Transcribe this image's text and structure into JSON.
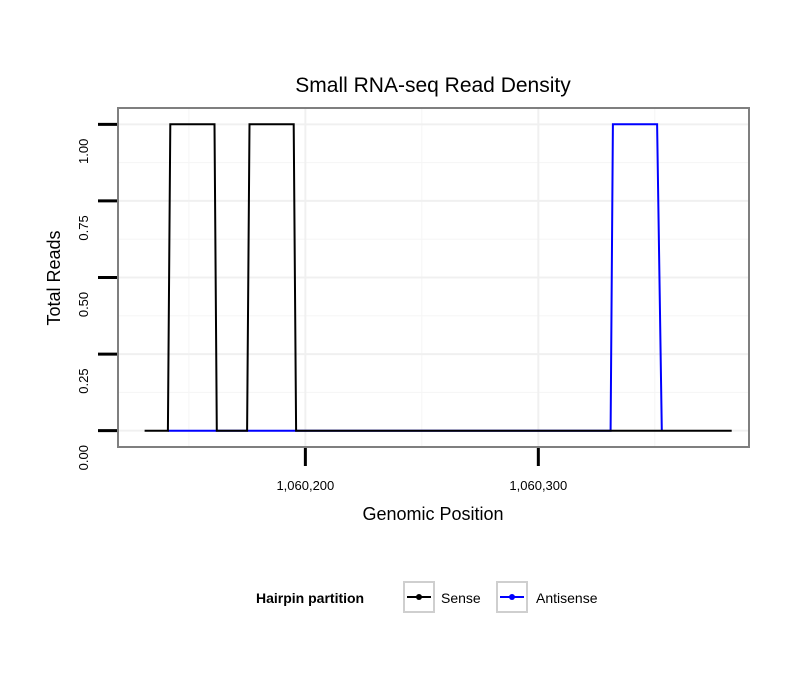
{
  "chart_data": {
    "type": "line",
    "title": "Small RNA-seq Read Density",
    "xlabel": "Genomic Position",
    "ylabel": "Total Reads",
    "xlim": [
      1060120,
      1060390
    ],
    "ylim": [
      -0.05,
      1.05
    ],
    "x_ticks": [
      1060200,
      1060300
    ],
    "x_tick_labels": [
      "1,060,200",
      "1,060,300"
    ],
    "y_ticks": [
      0,
      0.25,
      0.5,
      0.75,
      1
    ],
    "y_tick_labels": [
      "0.00",
      "0.25",
      "0.50",
      "0.75",
      "1.00"
    ],
    "grid": true,
    "legend_position": "bottom",
    "legend_title": "Hairpin partition",
    "series": [
      {
        "name": "Sense",
        "color": "#000000",
        "x": [
          1060131,
          1060141,
          1060142,
          1060161,
          1060162,
          1060175,
          1060176,
          1060195,
          1060196,
          1060383
        ],
        "values": [
          0,
          0,
          1,
          1,
          0,
          0,
          1,
          1,
          0,
          0
        ]
      },
      {
        "name": "Antisense",
        "color": "#0000ff",
        "x": [
          1060141,
          1060160,
          1060175,
          1060194,
          1060331,
          1060332,
          1060351,
          1060353
        ],
        "values": [
          0,
          0,
          0,
          0,
          0,
          1,
          1,
          0
        ]
      }
    ]
  }
}
